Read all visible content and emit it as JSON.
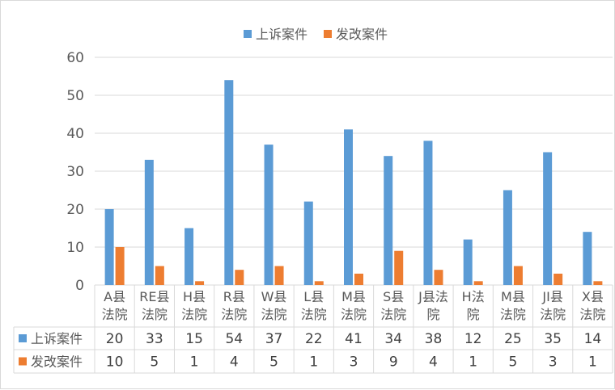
{
  "chart_data": {
    "type": "bar",
    "categories": [
      [
        "A县",
        "法院"
      ],
      [
        "RE县",
        "法院"
      ],
      [
        "H县",
        "法院"
      ],
      [
        "R县",
        "法院"
      ],
      [
        "W县",
        "法院"
      ],
      [
        "L县",
        "法院"
      ],
      [
        "M县",
        "法院"
      ],
      [
        "S县",
        "法院"
      ],
      [
        "J县法",
        "院"
      ],
      [
        "H法",
        "院"
      ],
      [
        "M县",
        "法院"
      ],
      [
        "JI县",
        "法院"
      ],
      [
        "X县",
        "法院"
      ]
    ],
    "series": [
      {
        "name": "上诉案件",
        "color": "#5b9bd5",
        "values": [
          20,
          33,
          15,
          54,
          37,
          22,
          41,
          34,
          38,
          12,
          25,
          35,
          14
        ]
      },
      {
        "name": "发改案件",
        "color": "#ed7d31",
        "values": [
          10,
          5,
          1,
          4,
          5,
          1,
          3,
          9,
          4,
          1,
          5,
          3,
          1
        ]
      }
    ],
    "ylim": [
      0,
      60
    ],
    "yticks": [
      0,
      10,
      20,
      30,
      40,
      50,
      60
    ],
    "grid": true,
    "legend": "top",
    "data_table": true
  }
}
